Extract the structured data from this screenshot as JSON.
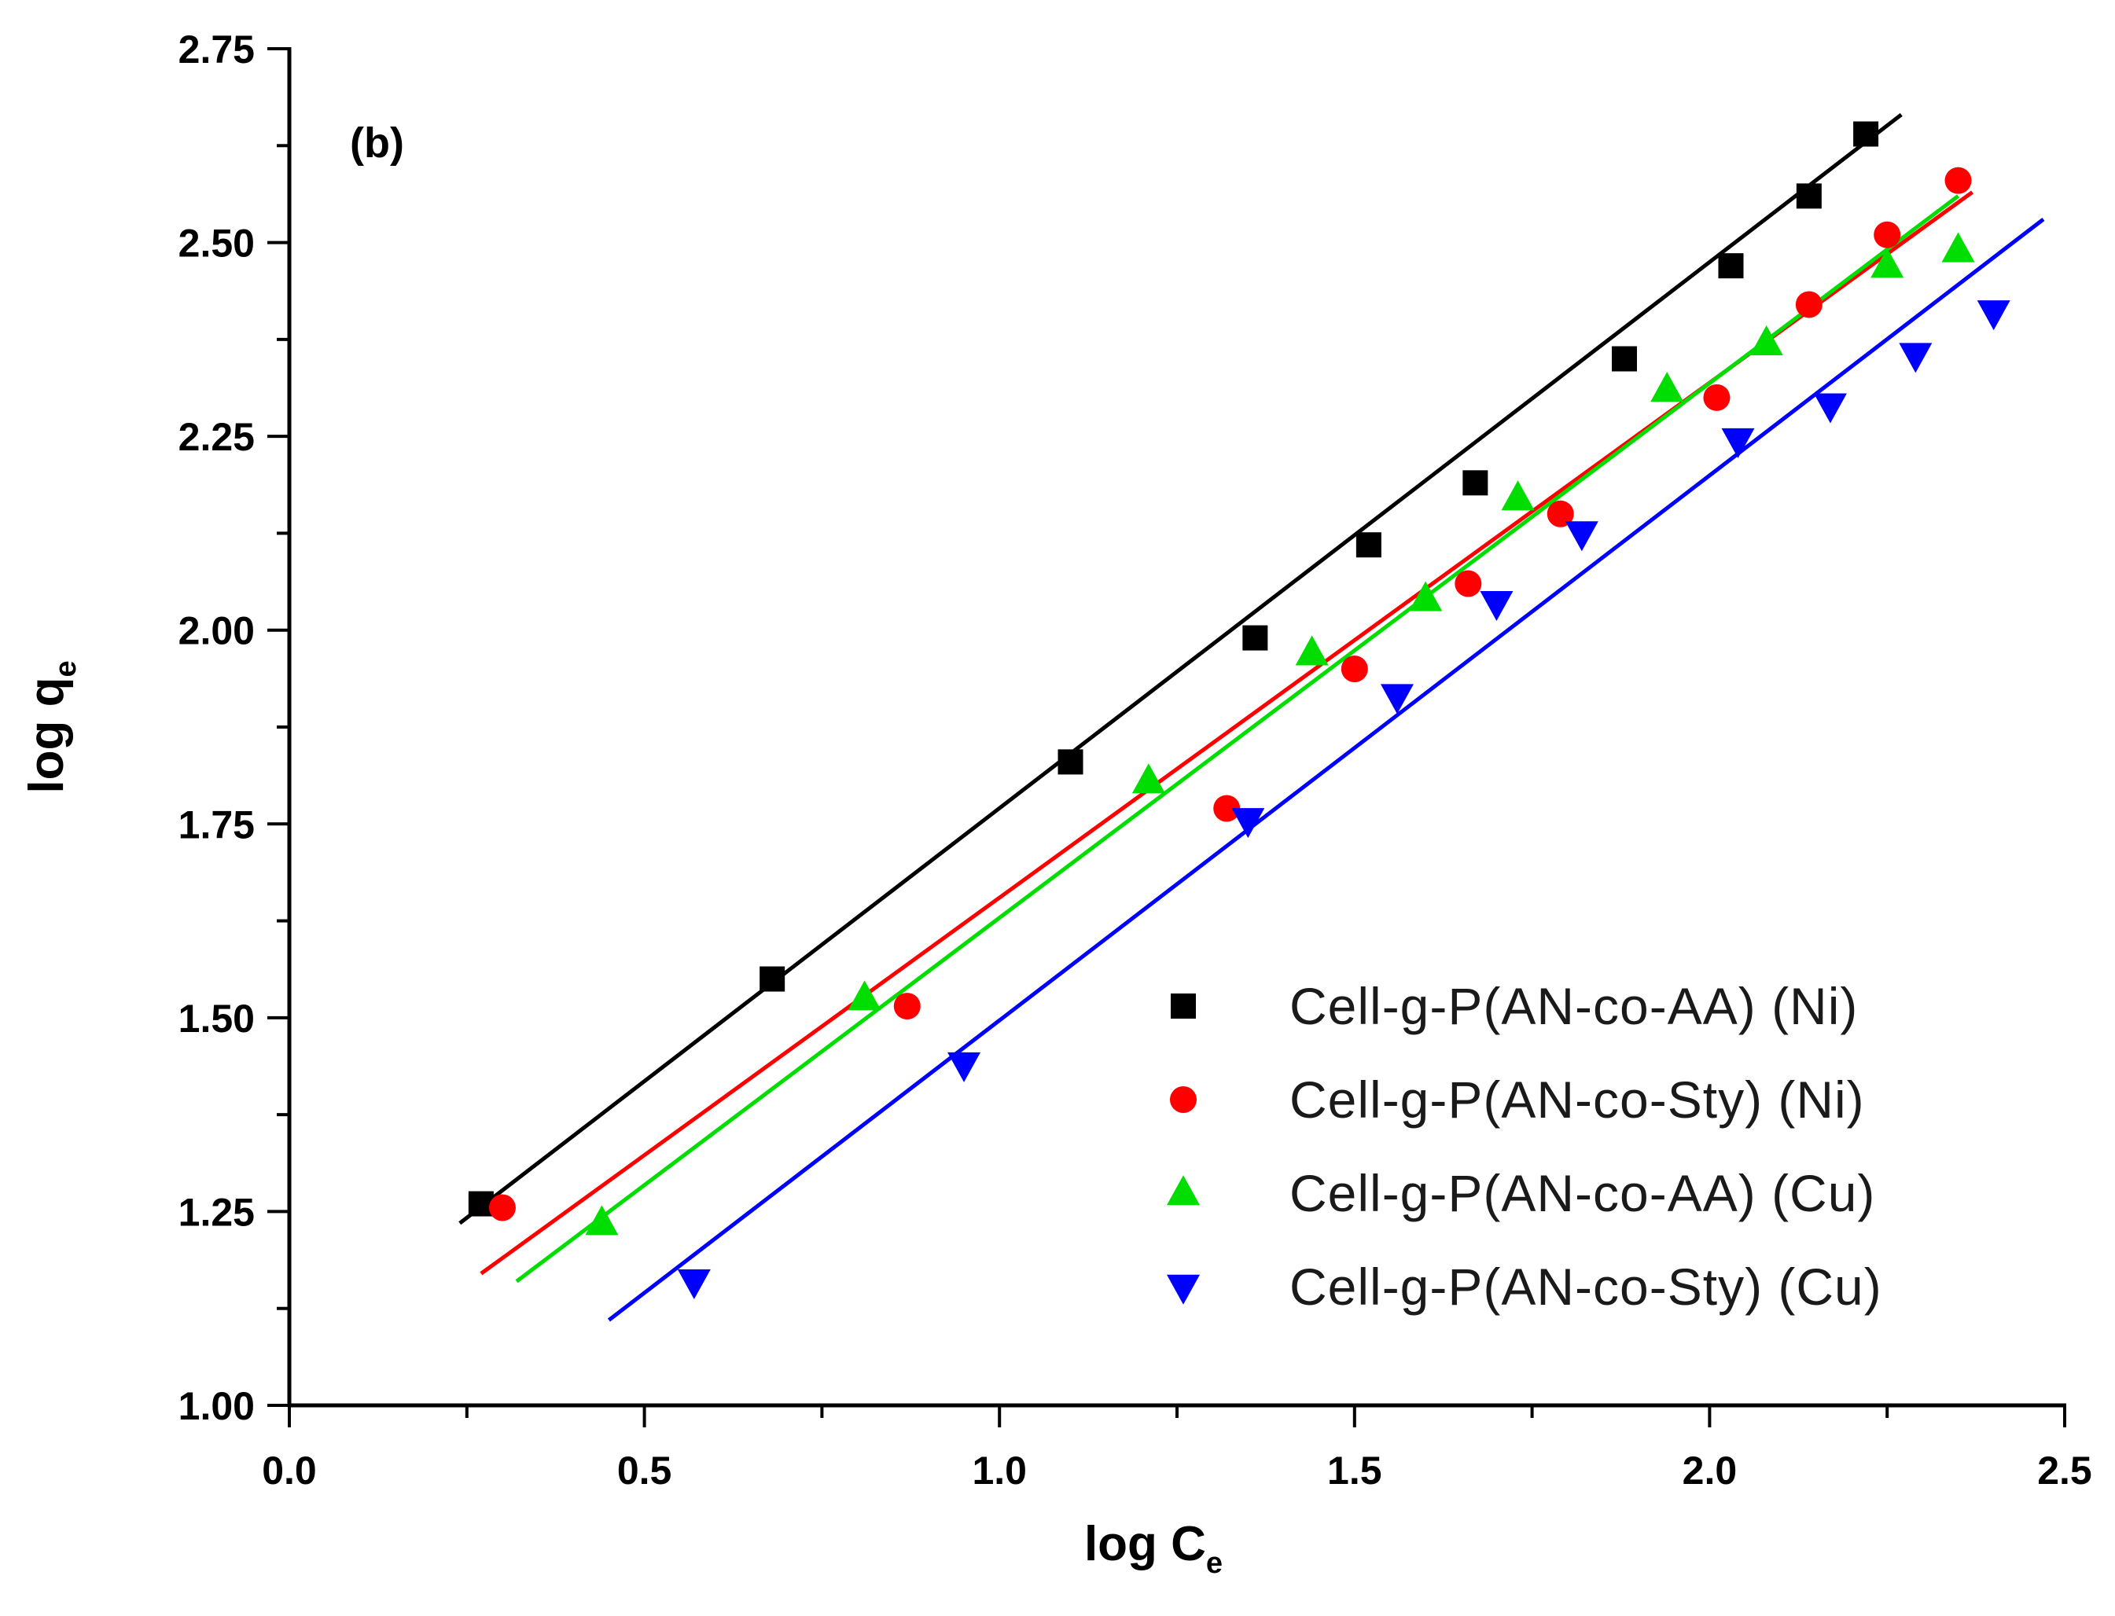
{
  "chart_data": {
    "type": "scatter",
    "panel_label": "(b)",
    "xlabel": {
      "main": "log C",
      "sub": "e"
    },
    "ylabel": {
      "main": "log q",
      "sub": "e"
    },
    "xlim": [
      0.0,
      2.5
    ],
    "ylim": [
      1.0,
      2.75
    ],
    "x_major_ticks": [
      0.0,
      0.5,
      1.0,
      1.5,
      2.0,
      2.5
    ],
    "x_tick_labels": [
      "0.0",
      "0.5",
      "1.0",
      "1.5",
      "2.0",
      "2.5"
    ],
    "x_minor_ticks": [
      0.25,
      0.75,
      1.25,
      1.75,
      2.25
    ],
    "y_major_ticks": [
      1.0,
      1.25,
      1.5,
      1.75,
      2.0,
      2.25,
      2.5,
      2.75
    ],
    "y_tick_labels": [
      "1.00",
      "1.25",
      "1.50",
      "1.75",
      "2.00",
      "2.25",
      "2.50",
      "2.75"
    ],
    "y_minor_ticks": [
      1.125,
      1.375,
      1.625,
      1.875,
      2.125,
      2.375,
      2.625
    ],
    "grid": false,
    "legend_position": "lower-right",
    "series": [
      {
        "name": "Cell-g-P(AN-co-AA) (Ni)",
        "marker": "square",
        "color": "#000000",
        "x": [
          0.27,
          0.68,
          1.1,
          1.36,
          1.52,
          1.67,
          1.88,
          2.03,
          2.14,
          2.22
        ],
        "y": [
          1.26,
          1.55,
          1.83,
          1.99,
          2.11,
          2.19,
          2.35,
          2.47,
          2.56,
          2.64
        ],
        "fit_line": {
          "x": [
            0.24,
            2.27
          ],
          "y": [
            1.235,
            2.665
          ]
        }
      },
      {
        "name": "Cell-g-P(AN-co-Sty) (Ni)",
        "marker": "circle",
        "color": "#ff0000",
        "x": [
          0.3,
          0.87,
          1.32,
          1.5,
          1.66,
          1.79,
          2.01,
          2.14,
          2.25,
          2.35
        ],
        "y": [
          1.255,
          1.515,
          1.77,
          1.95,
          2.06,
          2.15,
          2.3,
          2.42,
          2.51,
          2.58
        ],
        "fit_line": {
          "x": [
            0.27,
            2.37
          ],
          "y": [
            1.17,
            2.565
          ]
        }
      },
      {
        "name": "Cell-g-P(AN-co-AA) (Cu)",
        "marker": "triangle-up",
        "color": "#00dd00",
        "x": [
          0.44,
          0.81,
          1.21,
          1.44,
          1.6,
          1.73,
          1.94,
          2.08,
          2.25,
          2.35
        ],
        "y": [
          1.235,
          1.525,
          1.805,
          1.97,
          2.04,
          2.17,
          2.31,
          2.37,
          2.47,
          2.49
        ],
        "fit_line": {
          "x": [
            0.32,
            2.35
          ],
          "y": [
            1.16,
            2.56
          ]
        }
      },
      {
        "name": "Cell-g-P(AN-co-Sty) (Cu)",
        "marker": "triangle-down",
        "color": "#0000ff",
        "x": [
          0.57,
          0.95,
          1.35,
          1.56,
          1.7,
          1.82,
          2.04,
          2.17,
          2.29,
          2.4
        ],
        "y": [
          1.16,
          1.44,
          1.755,
          1.915,
          2.035,
          2.125,
          2.245,
          2.29,
          2.355,
          2.41
        ],
        "fit_line": {
          "x": [
            0.45,
            2.47
          ],
          "y": [
            1.11,
            2.53
          ]
        }
      }
    ]
  }
}
